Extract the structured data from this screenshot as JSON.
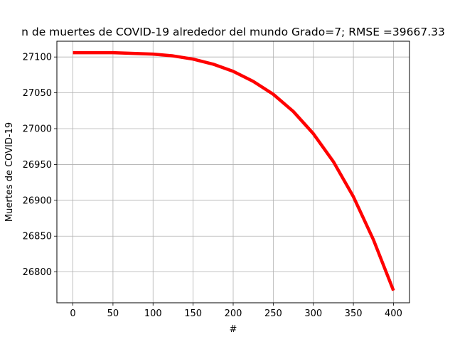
{
  "chart_data": {
    "type": "line",
    "title": "n de   muertes de COVID-19 alrededor del mundo Grado=7; RMSE =39667.33",
    "xlabel": "#",
    "ylabel": "Muertes de COVID-19",
    "xlim": [
      -20,
      420
    ],
    "ylim": [
      26757,
      27122
    ],
    "x_ticks": [
      0,
      50,
      100,
      150,
      200,
      250,
      300,
      350,
      400
    ],
    "y_ticks": [
      26800,
      26850,
      26900,
      26950,
      27000,
      27050,
      27100
    ],
    "grid": true,
    "legend": "none",
    "series": [
      {
        "color": "#ff0000",
        "x": [
          0,
          25,
          50,
          75,
          100,
          125,
          150,
          175,
          200,
          225,
          250,
          275,
          300,
          325,
          350,
          375,
          400
        ],
        "y": [
          27106,
          27106,
          27106,
          27105,
          27104,
          27101.5,
          27097,
          27090,
          27080,
          27066,
          27048,
          27024,
          26993,
          26954,
          26905,
          26845,
          26774
        ]
      }
    ]
  }
}
